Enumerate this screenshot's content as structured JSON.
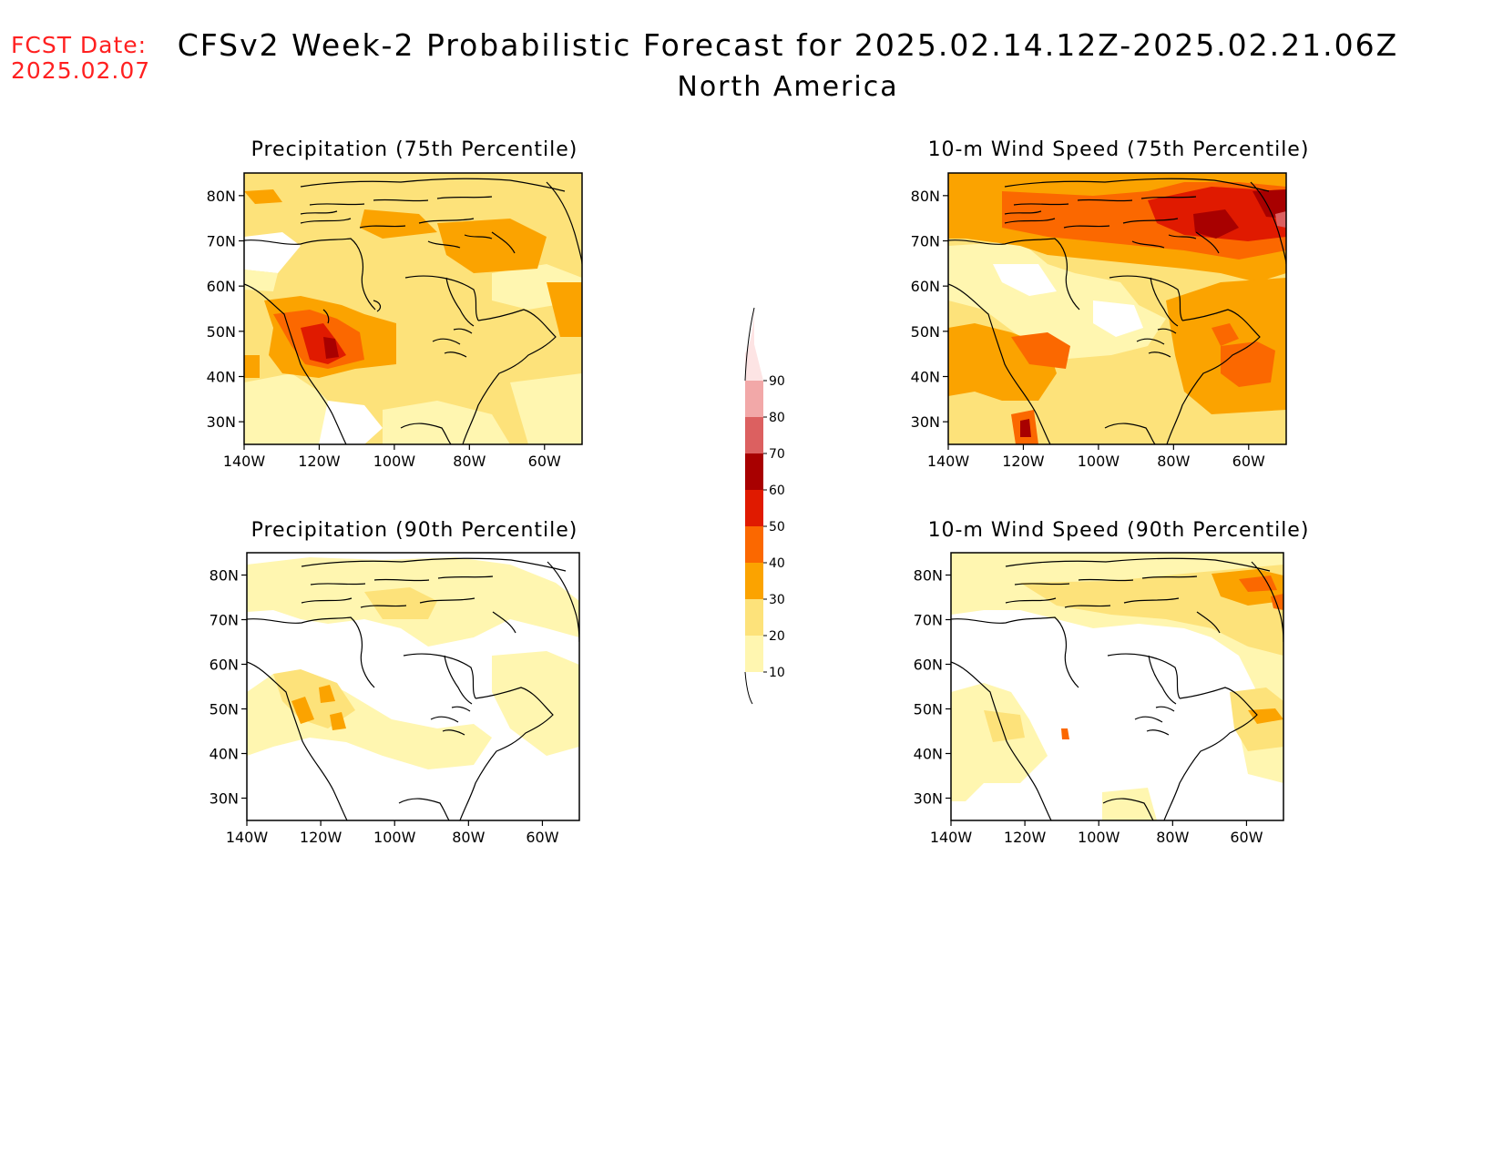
{
  "header": {
    "fcst_label": "FCST Date:",
    "fcst_date": "2025.02.07",
    "title": "CFSv2 Week-2 Probabilistic Forecast for 2025.02.14.12Z-2025.02.21.06Z",
    "region": "North America"
  },
  "panels": [
    {
      "id": "precip75",
      "title": "Precipitation (75th Percentile)"
    },
    {
      "id": "wind75",
      "title": "10-m Wind Speed (75th Percentile)"
    },
    {
      "id": "precip90",
      "title": "Precipitation (90th Percentile)"
    },
    {
      "id": "wind90",
      "title": "10-m Wind Speed (90th Percentile)"
    }
  ],
  "axes": {
    "lat_labels": [
      "80N",
      "70N",
      "60N",
      "50N",
      "40N",
      "30N"
    ],
    "lon_labels": [
      "140W",
      "120W",
      "100W",
      "80W",
      "60W"
    ]
  },
  "colorbar": {
    "levels": [
      "10",
      "20",
      "30",
      "40",
      "50",
      "60",
      "70",
      "80",
      "90"
    ],
    "colors": [
      "#fff6b0",
      "#fde27a",
      "#fba300",
      "#fb6800",
      "#e01a00",
      "#a80000",
      "#dc6060",
      "#f2a8a8",
      "#fde4e4"
    ]
  }
}
